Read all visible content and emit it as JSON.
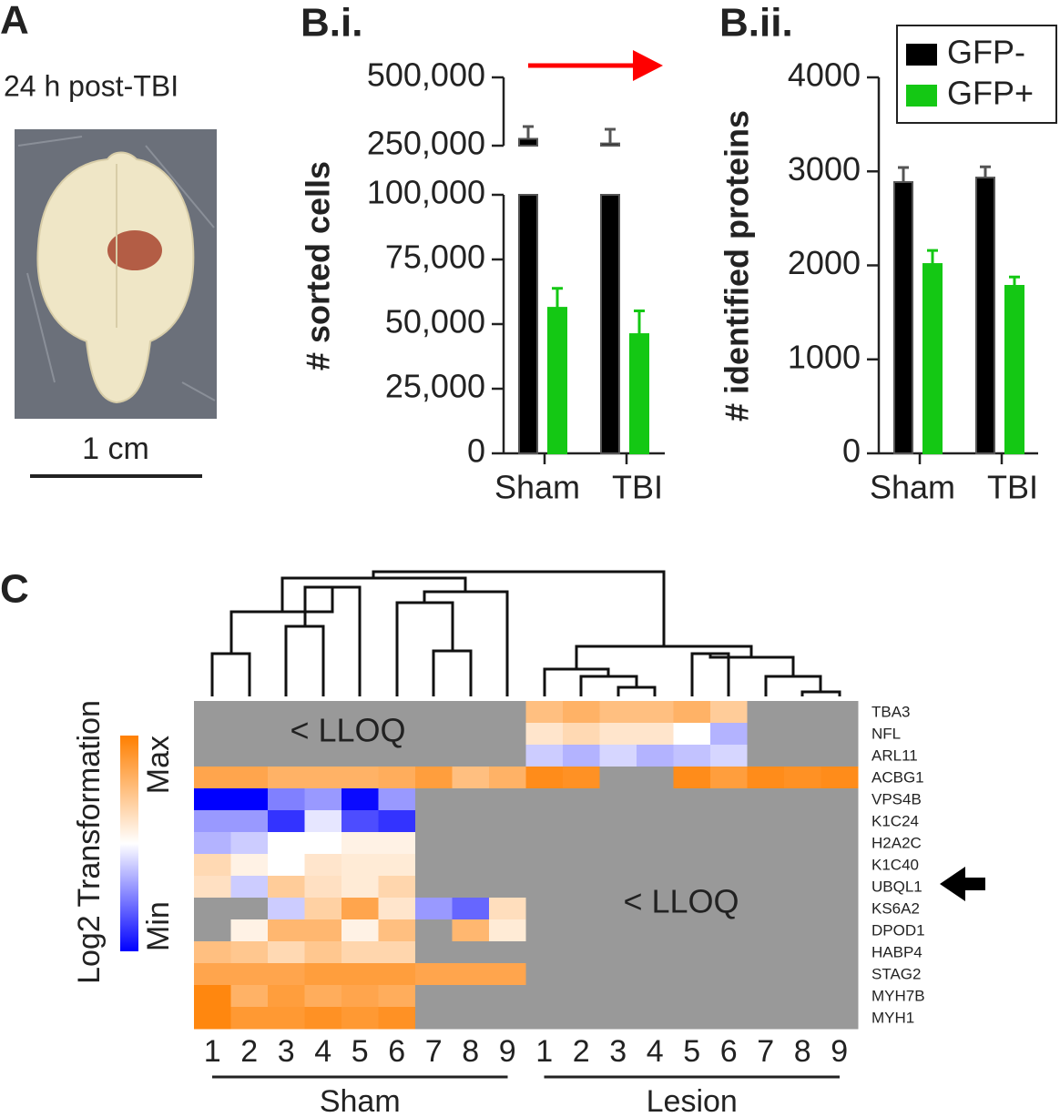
{
  "panel_a": {
    "label": "A",
    "caption": "24 h post-TBI",
    "scale_bar": "1 cm"
  },
  "chart_data": [
    {
      "type": "bar",
      "label": "B.i.",
      "ylabel": "# sorted cells",
      "categories": [
        "Sham",
        "TBI"
      ],
      "series": [
        {
          "color": "#000000",
          "values": [
            275000,
            258000
          ],
          "errors": [
            45000,
            52000
          ]
        },
        {
          "color": "#14c814",
          "values": [
            56300,
            46100
          ],
          "errors": [
            7500,
            9000
          ]
        }
      ],
      "ylim": [
        0,
        500000
      ],
      "axis_break": [
        100000,
        250000
      ],
      "yticks": [
        0,
        {
          "value": 25000,
          "label": "25,000"
        },
        {
          "value": 50000,
          "label": "50,000"
        },
        {
          "value": 75000,
          "label": "75,000"
        },
        {
          "value": 100000,
          "label": "100,000"
        },
        {
          "value": 250000,
          "label": "250,000"
        },
        {
          "value": 500000,
          "label": "500,000"
        }
      ]
    },
    {
      "type": "bar",
      "label": "B.ii.",
      "ylabel": "# identified proteins",
      "categories": [
        "Sham",
        "TBI"
      ],
      "series": [
        {
          "name": "GFP-",
          "color": "#000000",
          "values": [
            2886,
            2934
          ],
          "errors": [
            155,
            115
          ]
        },
        {
          "name": "GFP+",
          "color": "#14c814",
          "values": [
            2014,
            1782
          ],
          "errors": [
            145,
            95
          ]
        }
      ],
      "ylim": [
        0,
        4000
      ],
      "yticks": [
        0,
        1000,
        2000,
        3000,
        4000
      ],
      "legend": "top-right"
    },
    {
      "type": "heatmap",
      "label": "C",
      "rows": [
        "TBA3",
        "NFL",
        "ARL11",
        "ACBG1",
        "VPS4B",
        "K1C24",
        "H2A2C",
        "K1C40",
        "UBQL1",
        "KS6A2",
        "DPOD1",
        "HABP4",
        "STAG2",
        "MYH7B",
        "MYH1"
      ],
      "columns": [
        "1",
        "2",
        "3",
        "4",
        "5",
        "6",
        "7",
        "8",
        "9",
        "1",
        "2",
        "3",
        "4",
        "5",
        "6",
        "7",
        "8",
        "9"
      ],
      "groups": [
        "Sham",
        "Lesion"
      ],
      "zlim": [
        0,
        1
      ],
      "colors": {
        "low": "#0000ff",
        "mid": "#ffffff",
        "high": "#ff7f00",
        "missing": "#999999"
      },
      "colorbar": {
        "label": "Log2 Transformation",
        "ticks": [
          {
            "value": 1,
            "label": "Max"
          },
          {
            "value": 0,
            "label": "Min"
          }
        ]
      },
      "annotations": [
        "< LLOQ",
        "< LLOQ"
      ],
      "values": [
        [
          null,
          null,
          null,
          null,
          null,
          null,
          null,
          null,
          null,
          0.75,
          0.8,
          0.75,
          0.75,
          0.8,
          0.7,
          null,
          null,
          null
        ],
        [
          null,
          null,
          null,
          null,
          null,
          null,
          null,
          null,
          null,
          0.6,
          0.65,
          0.6,
          0.6,
          0.5,
          0.35,
          null,
          null,
          null
        ],
        [
          null,
          null,
          null,
          null,
          null,
          null,
          null,
          null,
          null,
          0.4,
          0.35,
          0.42,
          0.35,
          0.38,
          0.42,
          null,
          null,
          null
        ],
        [
          0.85,
          0.85,
          0.8,
          0.8,
          0.8,
          0.82,
          0.88,
          0.75,
          0.8,
          0.95,
          0.93,
          null,
          null,
          0.95,
          0.88,
          0.95,
          0.93,
          0.95
        ],
        [
          0.0,
          0.0,
          0.25,
          0.3,
          0.02,
          0.3,
          null,
          null,
          null,
          null,
          null,
          null,
          null,
          null,
          null,
          null,
          null,
          null
        ],
        [
          0.3,
          0.3,
          0.1,
          0.45,
          0.15,
          0.1,
          null,
          null,
          null,
          null,
          null,
          null,
          null,
          null,
          null,
          null,
          null,
          null
        ],
        [
          0.35,
          0.4,
          0.5,
          0.5,
          0.55,
          0.55,
          null,
          null,
          null,
          null,
          null,
          null,
          null,
          null,
          null,
          null,
          null,
          null
        ],
        [
          0.65,
          0.55,
          0.5,
          0.6,
          0.58,
          0.58,
          null,
          null,
          null,
          null,
          null,
          null,
          null,
          null,
          null,
          null,
          null,
          null
        ],
        [
          0.62,
          0.4,
          0.7,
          0.62,
          0.58,
          0.66,
          null,
          null,
          null,
          null,
          null,
          null,
          null,
          null,
          null,
          null,
          null,
          null
        ],
        [
          null,
          null,
          0.4,
          0.68,
          0.85,
          0.6,
          0.3,
          0.2,
          0.63,
          null,
          null,
          null,
          null,
          null,
          null,
          null,
          null,
          null
        ],
        [
          null,
          0.55,
          0.78,
          0.78,
          0.55,
          0.75,
          null,
          0.78,
          0.58,
          null,
          null,
          null,
          null,
          null,
          null,
          null,
          null,
          null
        ],
        [
          0.75,
          0.72,
          0.65,
          0.72,
          0.66,
          0.66,
          null,
          null,
          null,
          null,
          null,
          null,
          null,
          null,
          null,
          null,
          null,
          null
        ],
        [
          0.85,
          0.85,
          0.85,
          0.88,
          0.88,
          0.88,
          0.85,
          0.85,
          0.85,
          null,
          null,
          null,
          null,
          null,
          null,
          null,
          null,
          null
        ],
        [
          0.97,
          0.8,
          0.88,
          0.82,
          0.85,
          0.82,
          null,
          null,
          null,
          null,
          null,
          null,
          null,
          null,
          null,
          null,
          null,
          null
        ],
        [
          0.97,
          0.9,
          0.9,
          0.93,
          0.9,
          0.93,
          null,
          null,
          null,
          null,
          null,
          null,
          null,
          null,
          null,
          null,
          null,
          null
        ]
      ]
    }
  ]
}
